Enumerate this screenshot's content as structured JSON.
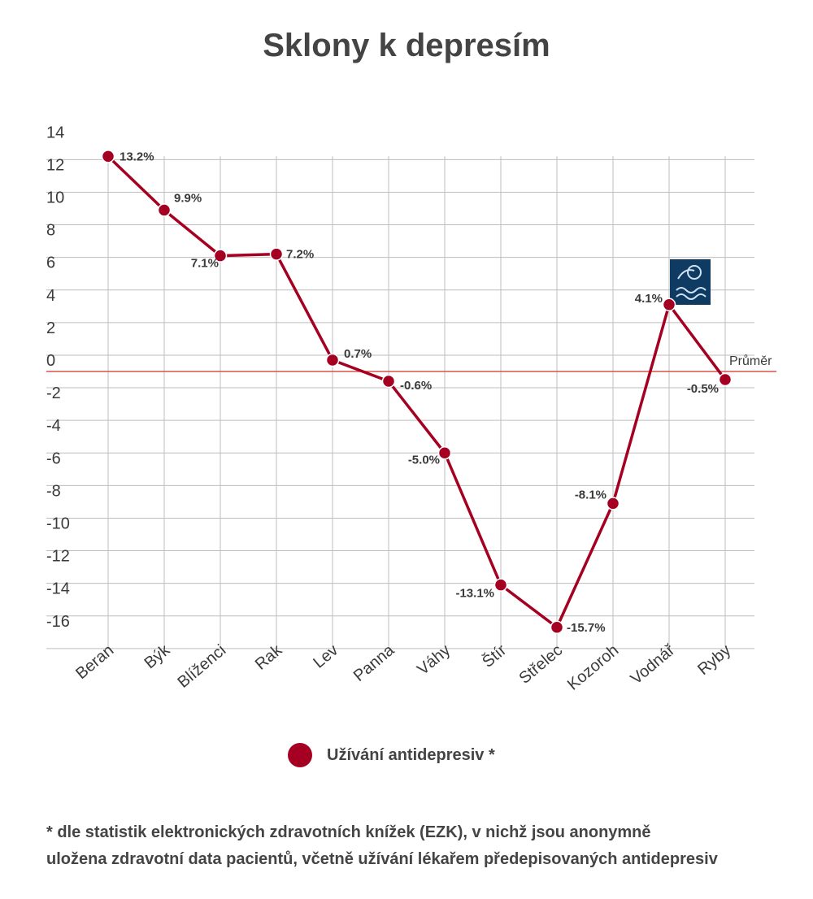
{
  "title": "Sklony k depresím",
  "legend": {
    "label": "Užívání antidepresiv *",
    "color": "#a50021"
  },
  "footnote": {
    "line1": "* dle statistik elektronických zdravotních knížek (EZK), v nichž jsou anonymně",
    "line2": "uložena zdravotní data pacientů, včetně užívání lékařem předepisovaných antidepresiv"
  },
  "chart_data": {
    "type": "line",
    "categories": [
      "Beran",
      "Býk",
      "Blíženci",
      "Rak",
      "Lev",
      "Panna",
      "Váhy",
      "Štír",
      "Střelec",
      "Kozoroh",
      "Vodnář",
      "Ryby"
    ],
    "series": [
      {
        "name": "Užívání antidepresiv *",
        "values": [
          13.2,
          9.9,
          7.1,
          7.2,
          0.7,
          -0.6,
          -5.0,
          -13.1,
          -15.7,
          -8.1,
          4.1,
          -0.5
        ],
        "labels": [
          "13.2%",
          "9.9%",
          "7.1%",
          "7.2%",
          "0.7%",
          "-0.6%",
          "-5.0%",
          "-13.1%",
          "-15.7%",
          "-8.1%",
          "4.1%",
          "-0.5%"
        ],
        "color": "#a50021"
      }
    ],
    "yticks": [
      14,
      12,
      10,
      8,
      6,
      4,
      2,
      0,
      -2,
      -4,
      -6,
      -8,
      -10,
      -12,
      -14,
      -16
    ],
    "ylim": [
      -16,
      14
    ],
    "grid": true,
    "reference_line": {
      "value": 0,
      "label": "Průměr",
      "color": "#d9534f"
    },
    "icon": "aquarius-sign-icon"
  }
}
